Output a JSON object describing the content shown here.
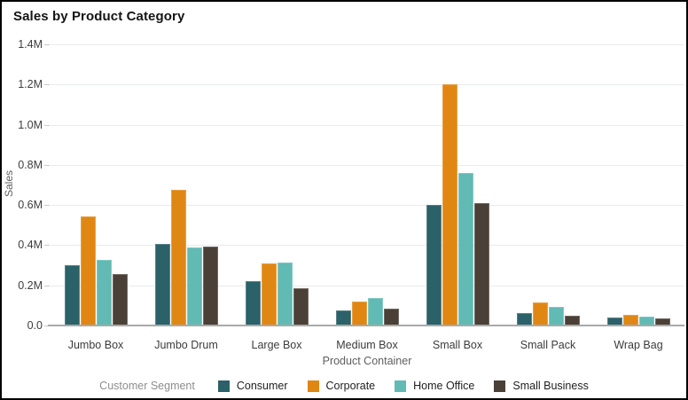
{
  "window": {
    "background": "#FFFFFF",
    "border_color": "#000000"
  },
  "chart_data": {
    "type": "bar",
    "title": "Sales by Product Category",
    "xlabel": "Product Container",
    "ylabel": "Sales",
    "legend_title": "Customer Segment",
    "legend_position": "bottom",
    "grid": true,
    "unit": "M",
    "ylim": [
      0,
      1.4
    ],
    "categories": [
      "Jumbo Box",
      "Jumbo Drum",
      "Large Box",
      "Medium Box",
      "Small Box",
      "Small Pack",
      "Wrap Bag"
    ],
    "series": [
      {
        "name": "Consumer",
        "color": "#2B6168",
        "values": [
          0.3,
          0.405,
          0.22,
          0.075,
          0.6,
          0.06,
          0.042
        ]
      },
      {
        "name": "Corporate",
        "color": "#E08713",
        "values": [
          0.545,
          0.675,
          0.31,
          0.12,
          1.2,
          0.115,
          0.052
        ]
      },
      {
        "name": "Home Office",
        "color": "#61BAB3",
        "values": [
          0.325,
          0.39,
          0.315,
          0.135,
          0.76,
          0.095,
          0.045
        ]
      },
      {
        "name": "Small Business",
        "color": "#4A4037",
        "values": [
          0.255,
          0.395,
          0.185,
          0.085,
          0.61,
          0.05,
          0.035
        ]
      }
    ],
    "y_ticks": [
      {
        "value": 0.0,
        "label": "0.0"
      },
      {
        "value": 0.2,
        "label": "0.2M"
      },
      {
        "value": 0.4,
        "label": "0.4M"
      },
      {
        "value": 0.6,
        "label": "0.6M"
      },
      {
        "value": 0.8,
        "label": "0.8M"
      },
      {
        "value": 1.0,
        "label": "1.0M"
      },
      {
        "value": 1.2,
        "label": "1.2M"
      },
      {
        "value": 1.4,
        "label": "1.4M"
      }
    ]
  },
  "colors": {
    "gridline": "#E9EAEF",
    "axis_line": "#A9A9A9",
    "tick_text": "#3C3C3C",
    "axis_title_text": "#5F5F5F",
    "legend_title_text": "#8E8E8E",
    "legend_item_text": "#1F1F1F",
    "title_text": "#141414"
  }
}
